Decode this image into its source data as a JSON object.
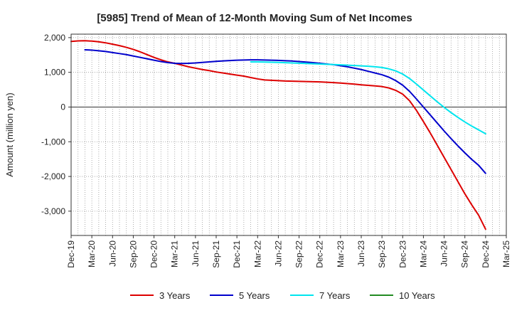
{
  "chart_data": {
    "type": "line",
    "title": "[5985]  Trend of Mean of 12-Month Moving Sum of Net Incomes",
    "ylabel": "Amount (million yen)",
    "xlabel": "",
    "ylim": [
      -3700,
      2100
    ],
    "yticks": [
      2000,
      1000,
      0,
      -1000,
      -2000,
      -3000
    ],
    "ytick_labels": [
      "2,000",
      "1,000",
      "0",
      "-1,000",
      "-2,000",
      "-3,000"
    ],
    "x_start": "Dec-19",
    "x_end": "Mar-25",
    "xtick_labels": [
      "Dec-19",
      "Mar-20",
      "Jun-20",
      "Sep-20",
      "Dec-20",
      "Mar-21",
      "Jun-21",
      "Sep-21",
      "Dec-21",
      "Mar-22",
      "Jun-22",
      "Sep-22",
      "Dec-22",
      "Mar-23",
      "Jun-23",
      "Sep-23",
      "Dec-23",
      "Mar-24",
      "Jun-24",
      "Sep-24",
      "Dec-24",
      "Mar-25"
    ],
    "grid": true,
    "legend_position": "bottom",
    "series": [
      {
        "name": "3 Years",
        "color": "#dd0000",
        "points": [
          [
            "Dec-19",
            1890
          ],
          [
            "Jan-20",
            1905
          ],
          [
            "Feb-20",
            1910
          ],
          [
            "Mar-20",
            1900
          ],
          [
            "Apr-20",
            1880
          ],
          [
            "May-20",
            1850
          ],
          [
            "Jun-20",
            1810
          ],
          [
            "Jul-20",
            1770
          ],
          [
            "Aug-20",
            1720
          ],
          [
            "Sep-20",
            1660
          ],
          [
            "Oct-20",
            1590
          ],
          [
            "Nov-20",
            1510
          ],
          [
            "Dec-20",
            1430
          ],
          [
            "Jan-21",
            1360
          ],
          [
            "Feb-21",
            1300
          ],
          [
            "Mar-21",
            1260
          ],
          [
            "Apr-21",
            1210
          ],
          [
            "May-21",
            1160
          ],
          [
            "Jun-21",
            1120
          ],
          [
            "Jul-21",
            1080
          ],
          [
            "Aug-21",
            1050
          ],
          [
            "Sep-21",
            1010
          ],
          [
            "Oct-21",
            980
          ],
          [
            "Nov-21",
            950
          ],
          [
            "Dec-21",
            920
          ],
          [
            "Jan-22",
            890
          ],
          [
            "Feb-22",
            850
          ],
          [
            "Mar-22",
            810
          ],
          [
            "Apr-22",
            780
          ],
          [
            "May-22",
            770
          ],
          [
            "Jun-22",
            760
          ],
          [
            "Jul-22",
            750
          ],
          [
            "Aug-22",
            745
          ],
          [
            "Sep-22",
            740
          ],
          [
            "Oct-22",
            735
          ],
          [
            "Nov-22",
            730
          ],
          [
            "Dec-22",
            725
          ],
          [
            "Jan-23",
            715
          ],
          [
            "Feb-23",
            705
          ],
          [
            "Mar-23",
            690
          ],
          [
            "Apr-23",
            675
          ],
          [
            "May-23",
            660
          ],
          [
            "Jun-23",
            640
          ],
          [
            "Jul-23",
            625
          ],
          [
            "Aug-23",
            610
          ],
          [
            "Sep-23",
            590
          ],
          [
            "Oct-23",
            550
          ],
          [
            "Nov-23",
            480
          ],
          [
            "Dec-23",
            370
          ],
          [
            "Jan-24",
            180
          ],
          [
            "Feb-24",
            -100
          ],
          [
            "Mar-24",
            -420
          ],
          [
            "Apr-24",
            -750
          ],
          [
            "May-24",
            -1100
          ],
          [
            "Jun-24",
            -1450
          ],
          [
            "Jul-24",
            -1800
          ],
          [
            "Aug-24",
            -2150
          ],
          [
            "Sep-24",
            -2500
          ],
          [
            "Oct-24",
            -2820
          ],
          [
            "Nov-24",
            -3120
          ],
          [
            "Dec-24",
            -3520
          ]
        ]
      },
      {
        "name": "5 Years",
        "color": "#0000cc",
        "points": [
          [
            "Feb-20",
            1650
          ],
          [
            "Mar-20",
            1640
          ],
          [
            "Apr-20",
            1620
          ],
          [
            "May-20",
            1600
          ],
          [
            "Jun-20",
            1570
          ],
          [
            "Jul-20",
            1540
          ],
          [
            "Aug-20",
            1510
          ],
          [
            "Sep-20",
            1470
          ],
          [
            "Oct-20",
            1430
          ],
          [
            "Nov-20",
            1390
          ],
          [
            "Dec-20",
            1350
          ],
          [
            "Jan-21",
            1310
          ],
          [
            "Feb-21",
            1280
          ],
          [
            "Mar-21",
            1260
          ],
          [
            "Apr-21",
            1255
          ],
          [
            "May-21",
            1260
          ],
          [
            "Jun-21",
            1270
          ],
          [
            "Jul-21",
            1285
          ],
          [
            "Aug-21",
            1300
          ],
          [
            "Sep-21",
            1315
          ],
          [
            "Oct-21",
            1330
          ],
          [
            "Nov-21",
            1340
          ],
          [
            "Dec-21",
            1350
          ],
          [
            "Jan-22",
            1355
          ],
          [
            "Feb-22",
            1360
          ],
          [
            "Mar-22",
            1360
          ],
          [
            "Apr-22",
            1355
          ],
          [
            "May-22",
            1350
          ],
          [
            "Jun-22",
            1345
          ],
          [
            "Jul-22",
            1335
          ],
          [
            "Aug-22",
            1325
          ],
          [
            "Sep-22",
            1310
          ],
          [
            "Oct-22",
            1295
          ],
          [
            "Nov-22",
            1280
          ],
          [
            "Dec-22",
            1260
          ],
          [
            "Jan-23",
            1240
          ],
          [
            "Feb-23",
            1220
          ],
          [
            "Mar-23",
            1190
          ],
          [
            "Apr-23",
            1160
          ],
          [
            "May-23",
            1120
          ],
          [
            "Jun-23",
            1080
          ],
          [
            "Jul-23",
            1030
          ],
          [
            "Aug-23",
            980
          ],
          [
            "Sep-23",
            930
          ],
          [
            "Oct-23",
            860
          ],
          [
            "Nov-23",
            760
          ],
          [
            "Dec-23",
            630
          ],
          [
            "Jan-24",
            450
          ],
          [
            "Feb-24",
            230
          ],
          [
            "Mar-24",
            0
          ],
          [
            "Apr-24",
            -230
          ],
          [
            "May-24",
            -460
          ],
          [
            "Jun-24",
            -690
          ],
          [
            "Jul-24",
            -910
          ],
          [
            "Aug-24",
            -1120
          ],
          [
            "Sep-24",
            -1320
          ],
          [
            "Oct-24",
            -1510
          ],
          [
            "Nov-24",
            -1680
          ],
          [
            "Dec-24",
            -1910
          ]
        ]
      },
      {
        "name": "7 Years",
        "color": "#00e5ee",
        "points": [
          [
            "Feb-22",
            1300
          ],
          [
            "Mar-22",
            1300
          ],
          [
            "Apr-22",
            1295
          ],
          [
            "May-22",
            1290
          ],
          [
            "Jun-22",
            1285
          ],
          [
            "Jul-22",
            1278
          ],
          [
            "Aug-22",
            1270
          ],
          [
            "Sep-22",
            1262
          ],
          [
            "Oct-22",
            1255
          ],
          [
            "Nov-22",
            1248
          ],
          [
            "Dec-22",
            1240
          ],
          [
            "Jan-23",
            1232
          ],
          [
            "Feb-23",
            1224
          ],
          [
            "Mar-23",
            1215
          ],
          [
            "Apr-23",
            1205
          ],
          [
            "May-23",
            1195
          ],
          [
            "Jun-23",
            1185
          ],
          [
            "Jul-23",
            1175
          ],
          [
            "Aug-23",
            1160
          ],
          [
            "Sep-23",
            1140
          ],
          [
            "Oct-23",
            1100
          ],
          [
            "Nov-23",
            1040
          ],
          [
            "Dec-23",
            950
          ],
          [
            "Jan-24",
            820
          ],
          [
            "Feb-24",
            660
          ],
          [
            "Mar-24",
            490
          ],
          [
            "Apr-24",
            320
          ],
          [
            "May-24",
            150
          ],
          [
            "Jun-24",
            -10
          ],
          [
            "Jul-24",
            -160
          ],
          [
            "Aug-24",
            -300
          ],
          [
            "Sep-24",
            -430
          ],
          [
            "Oct-24",
            -550
          ],
          [
            "Nov-24",
            -660
          ],
          [
            "Dec-24",
            -770
          ]
        ]
      },
      {
        "name": "10 Years",
        "color": "#228b22",
        "points": []
      }
    ]
  }
}
